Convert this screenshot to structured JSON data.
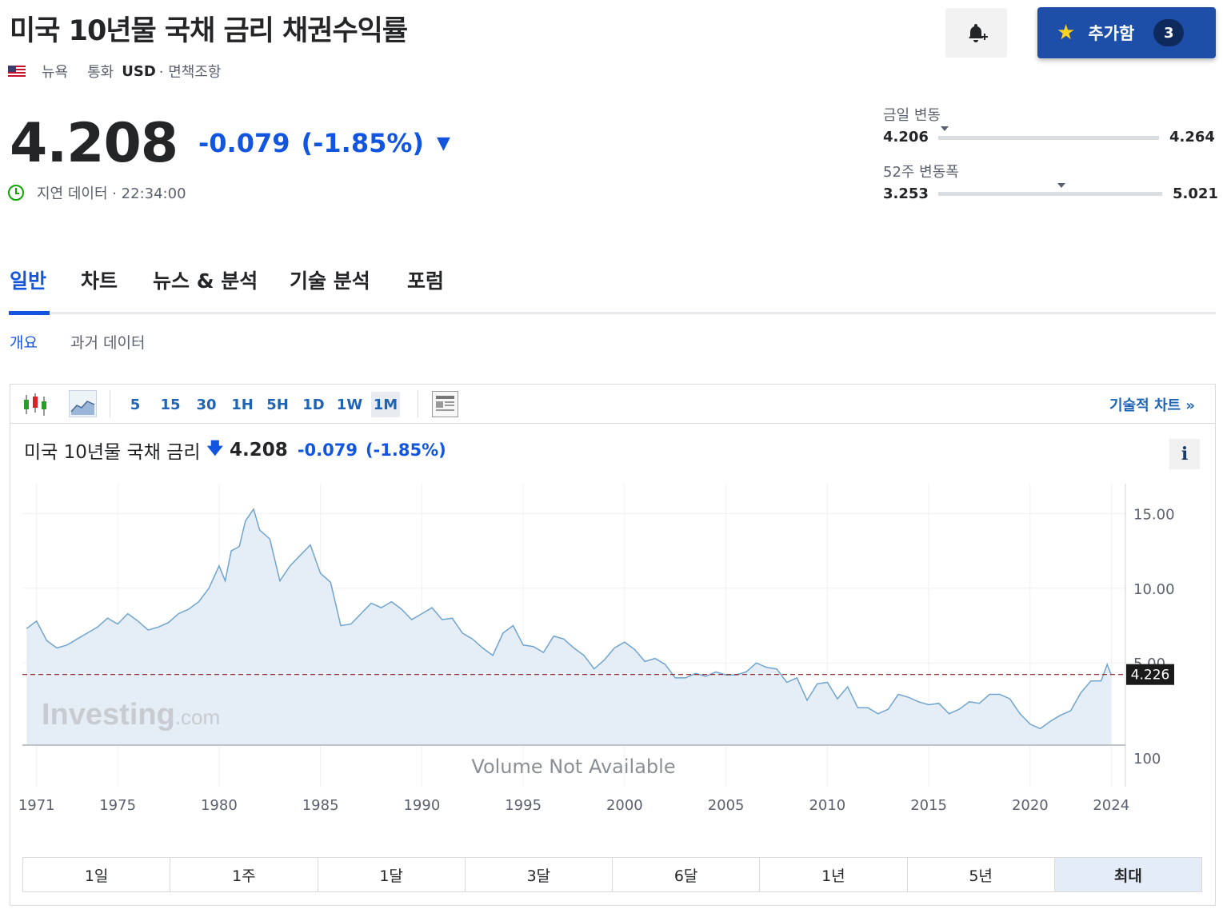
{
  "header": {
    "title": "미국 10년물 국채 금리 채권수익률",
    "exchange": "뉴욕",
    "currency_label": "통화",
    "currency": "USD",
    "disclaimer": "· 면책조항"
  },
  "actions": {
    "add_label": "추가함",
    "add_count": "3"
  },
  "quote": {
    "price": "4.208",
    "change": "-0.079",
    "change_pct": "(-1.85%)",
    "delay_text": "지연 데이터 · 22:34:00"
  },
  "ranges": {
    "day": {
      "label": "금일 변동",
      "low": "4.206",
      "high": "4.264",
      "position": 0.03
    },
    "week52": {
      "label": "52주 변동폭",
      "low": "3.253",
      "high": "5.021",
      "position": 0.55
    }
  },
  "tabs": [
    "일반",
    "차트",
    "뉴스 & 분석",
    "기술 분석",
    "포럼"
  ],
  "subtabs": [
    "개요",
    "과거 데이터"
  ],
  "toolbar": {
    "timeframes": [
      "5",
      "15",
      "30",
      "1H",
      "5H",
      "1D",
      "1W",
      "1M"
    ],
    "active_timeframe": "1M",
    "tech_chart": "기술적 차트 »"
  },
  "chart_header": {
    "name": "미국 10년물 국채 금리",
    "price": "4.208",
    "change": "-0.079",
    "change_pct": "(-1.85%)",
    "info": "i"
  },
  "chart_data": {
    "type": "area",
    "x_ticks": [
      "1971",
      "1975",
      "1980",
      "1985",
      "1990",
      "1995",
      "2000",
      "2005",
      "2010",
      "2015",
      "2020",
      "2024"
    ],
    "y_ticks": [
      "15.00",
      "10.00",
      "5.00"
    ],
    "volume_tick": "100",
    "current_value_label": "4.226",
    "reference_line": 4.226,
    "volume_text": "Volume Not Available",
    "watermark": "Investing.com",
    "x": [
      1970.5,
      1971,
      1971.5,
      1972,
      1972.5,
      1973,
      1973.5,
      1974,
      1974.5,
      1975,
      1975.5,
      1976,
      1976.5,
      1977,
      1977.5,
      1978,
      1978.5,
      1979,
      1979.5,
      1980,
      1980.3,
      1980.6,
      1981,
      1981.3,
      1981.7,
      1982,
      1982.5,
      1983,
      1983.5,
      1984,
      1984.5,
      1985,
      1985.5,
      1986,
      1986.5,
      1987,
      1987.5,
      1988,
      1988.5,
      1989,
      1989.5,
      1990,
      1990.5,
      1991,
      1991.5,
      1992,
      1992.5,
      1993,
      1993.5,
      1994,
      1994.5,
      1995,
      1995.5,
      1996,
      1996.5,
      1997,
      1997.5,
      1998,
      1998.5,
      1999,
      1999.5,
      2000,
      2000.5,
      2001,
      2001.5,
      2002,
      2002.5,
      2003,
      2003.5,
      2004,
      2004.5,
      2005,
      2005.5,
      2006,
      2006.5,
      2007,
      2007.5,
      2008,
      2008.5,
      2009,
      2009.5,
      2010,
      2010.5,
      2011,
      2011.5,
      2012,
      2012.5,
      2013,
      2013.5,
      2014,
      2014.5,
      2015,
      2015.5,
      2016,
      2016.5,
      2017,
      2017.5,
      2018,
      2018.5,
      2019,
      2019.5,
      2020,
      2020.5,
      2021,
      2021.5,
      2022,
      2022.5,
      2023,
      2023.5,
      2023.8,
      2024
    ],
    "y": [
      7.3,
      7.8,
      6.5,
      6.0,
      6.2,
      6.6,
      7.0,
      7.4,
      8.0,
      7.6,
      8.3,
      7.8,
      7.2,
      7.4,
      7.7,
      8.3,
      8.6,
      9.1,
      10.0,
      11.5,
      10.5,
      12.5,
      12.8,
      14.5,
      15.3,
      13.9,
      13.3,
      10.5,
      11.5,
      12.2,
      12.9,
      11.0,
      10.4,
      7.5,
      7.6,
      8.3,
      9.0,
      8.7,
      9.1,
      8.6,
      7.9,
      8.3,
      8.7,
      7.9,
      8.0,
      7.0,
      6.6,
      6.0,
      5.5,
      7.0,
      7.5,
      6.2,
      6.1,
      5.7,
      6.8,
      6.6,
      6.0,
      5.5,
      4.6,
      5.2,
      6.0,
      6.4,
      5.9,
      5.1,
      5.3,
      4.9,
      4.0,
      4.0,
      4.3,
      4.1,
      4.4,
      4.2,
      4.2,
      4.4,
      5.0,
      4.7,
      4.6,
      3.7,
      4.0,
      2.5,
      3.6,
      3.7,
      2.6,
      3.4,
      2.0,
      2.0,
      1.6,
      1.9,
      2.9,
      2.7,
      2.4,
      2.2,
      2.3,
      1.6,
      1.9,
      2.4,
      2.3,
      2.9,
      2.9,
      2.6,
      1.6,
      0.9,
      0.6,
      1.1,
      1.5,
      1.8,
      3.0,
      3.8,
      3.8,
      4.9,
      4.2
    ]
  },
  "periods": [
    "1일",
    "1주",
    "1달",
    "3달",
    "6달",
    "1년",
    "5년",
    "최대"
  ],
  "colors": {
    "accent_blue": "#1256e0",
    "button_blue": "#1e4fa8",
    "line": "#6fa4cf",
    "area": "#e5eef6",
    "ref_line": "#8b1c1c"
  }
}
